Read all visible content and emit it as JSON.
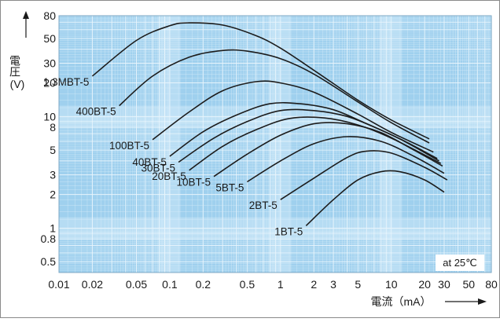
{
  "chart_data": {
    "type": "line",
    "xlabel": "電流（mA）",
    "ylabel": "電圧",
    "ylabel_unit": "(V)",
    "annotation": "at 25℃",
    "x_scale": "log",
    "y_scale": "log",
    "xlim": [
      0.01,
      80
    ],
    "ylim": [
      0.4,
      80
    ],
    "grid": true,
    "x_ticks": [
      {
        "value": 0.01,
        "label": "0.01"
      },
      {
        "value": 0.02,
        "label": "0.02"
      },
      {
        "value": 0.05,
        "label": "0.05"
      },
      {
        "value": 0.1,
        "label": "0.1"
      },
      {
        "value": 0.2,
        "label": "0.2"
      },
      {
        "value": 0.5,
        "label": "0.5"
      },
      {
        "value": 1,
        "label": "1"
      },
      {
        "value": 2,
        "label": "2"
      },
      {
        "value": 3,
        "label": "3"
      },
      {
        "value": 5,
        "label": "5"
      },
      {
        "value": 10,
        "label": "10"
      },
      {
        "value": 20,
        "label": "20"
      },
      {
        "value": 30,
        "label": "30"
      },
      {
        "value": 50,
        "label": "50"
      },
      {
        "value": 80,
        "label": "80"
      }
    ],
    "y_ticks": [
      {
        "value": 0.5,
        "label": "0.5"
      },
      {
        "value": 0.8,
        "label": "0.8"
      },
      {
        "value": 1,
        "label": "1"
      },
      {
        "value": 2,
        "label": "2"
      },
      {
        "value": 3,
        "label": "3"
      },
      {
        "value": 5,
        "label": "5"
      },
      {
        "value": 8,
        "label": "8"
      },
      {
        "value": 10,
        "label": "10"
      },
      {
        "value": 20,
        "label": "20"
      },
      {
        "value": 30,
        "label": "30"
      },
      {
        "value": 50,
        "label": "50"
      },
      {
        "value": 80,
        "label": "80"
      }
    ],
    "series": [
      {
        "name": "1.3MBT-5",
        "x": [
          0.02,
          0.05,
          0.1,
          0.15,
          0.3,
          0.6,
          1,
          2,
          5,
          10,
          22
        ],
        "y": [
          23,
          48,
          65,
          69,
          66,
          53,
          41,
          26,
          14,
          9.3,
          6.3
        ]
      },
      {
        "name": "400BT-5",
        "x": [
          0.035,
          0.07,
          0.15,
          0.3,
          0.5,
          1,
          2,
          5,
          10,
          22
        ],
        "y": [
          12.5,
          23,
          34,
          39,
          38.5,
          33,
          24,
          13.5,
          8.8,
          5.8
        ]
      },
      {
        "name": "100BT-5",
        "x": [
          0.07,
          0.15,
          0.3,
          0.6,
          1,
          2,
          5,
          10,
          24
        ],
        "y": [
          6.2,
          11,
          17,
          20.5,
          20,
          16.5,
          10.5,
          7.2,
          4.8
        ]
      },
      {
        "name": "40BT-5",
        "x": [
          0.1,
          0.2,
          0.4,
          0.8,
          1.5,
          3,
          6,
          12,
          26
        ],
        "y": [
          4.4,
          7.3,
          10.3,
          13,
          13,
          11.5,
          8.6,
          6.3,
          4.2
        ]
      },
      {
        "name": "30BT-5",
        "x": [
          0.12,
          0.25,
          0.5,
          1,
          2,
          4,
          8,
          14,
          27
        ],
        "y": [
          3.9,
          6.4,
          9,
          11.3,
          11.3,
          10,
          7.6,
          5.8,
          4.0
        ]
      },
      {
        "name": "20BT-5",
        "x": [
          0.15,
          0.3,
          0.6,
          1.2,
          2.5,
          5,
          10,
          28
        ],
        "y": [
          3.3,
          5.4,
          7.6,
          9.6,
          9.7,
          8.4,
          6.4,
          3.8
        ]
      },
      {
        "name": "10BT-5",
        "x": [
          0.25,
          0.5,
          1,
          2,
          4,
          8,
          16,
          29
        ],
        "y": [
          2.9,
          4.6,
          6.8,
          8.6,
          8.6,
          7.2,
          5.0,
          3.6
        ]
      },
      {
        "name": "5BT-5",
        "x": [
          0.5,
          1,
          2,
          4,
          8,
          16,
          30
        ],
        "y": [
          2.6,
          4,
          5.7,
          6.6,
          6,
          4.4,
          3.1
        ]
      },
      {
        "name": "2BT-5",
        "x": [
          1,
          2,
          4,
          6,
          10,
          20,
          32
        ],
        "y": [
          1.8,
          2.8,
          4.3,
          4.9,
          4.7,
          3.5,
          2.7
        ]
      },
      {
        "name": "1BT-5",
        "x": [
          1.7,
          3,
          5,
          8,
          12,
          20,
          30
        ],
        "y": [
          1.05,
          1.8,
          2.7,
          3.2,
          3.2,
          2.7,
          2.1
        ]
      }
    ]
  },
  "colors": {
    "plot_bg": "#9fd0ee",
    "band_light": "#c9e6f7",
    "grid_minor": "#d9eefa",
    "grid_major": "#eaf6fd",
    "curve": "#1c1c1c",
    "note_bg": "#ffffff"
  }
}
